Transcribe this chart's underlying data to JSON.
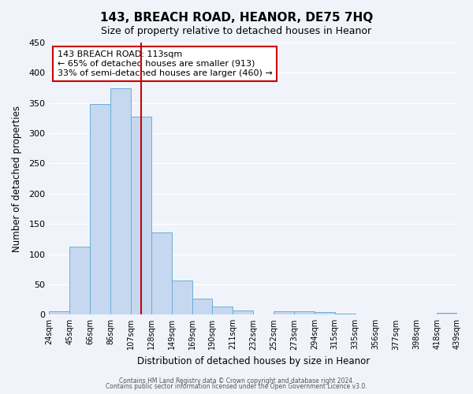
{
  "title": "143, BREACH ROAD, HEANOR, DE75 7HQ",
  "subtitle": "Size of property relative to detached houses in Heanor",
  "xlabel": "Distribution of detached houses by size in Heanor",
  "ylabel": "Number of detached properties",
  "bin_edges": [
    "24sqm",
    "45sqm",
    "66sqm",
    "86sqm",
    "107sqm",
    "128sqm",
    "149sqm",
    "169sqm",
    "190sqm",
    "211sqm",
    "232sqm",
    "252sqm",
    "273sqm",
    "294sqm",
    "315sqm",
    "335sqm",
    "356sqm",
    "377sqm",
    "398sqm",
    "418sqm",
    "439sqm"
  ],
  "bar_values": [
    5,
    113,
    349,
    375,
    327,
    136,
    57,
    26,
    13,
    7,
    0,
    6,
    5,
    4,
    2,
    0,
    1,
    0,
    0,
    3
  ],
  "bar_color": "#c5d8f0",
  "bar_edge_color": "#6aaed6",
  "vline_color": "#cc0000",
  "vline_x": 4.5,
  "ylim": [
    0,
    450
  ],
  "yticks": [
    0,
    50,
    100,
    150,
    200,
    250,
    300,
    350,
    400,
    450
  ],
  "annotation_title": "143 BREACH ROAD: 113sqm",
  "annotation_line1": "← 65% of detached houses are smaller (913)",
  "annotation_line2": "33% of semi-detached houses are larger (460) →",
  "annotation_box_color": "#ffffff",
  "annotation_box_edge": "#cc0000",
  "footer1": "Contains HM Land Registry data © Crown copyright and database right 2024.",
  "footer2": "Contains public sector information licensed under the Open Government Licence v3.0.",
  "background_color": "#f0f4fa",
  "grid_color": "#ffffff"
}
